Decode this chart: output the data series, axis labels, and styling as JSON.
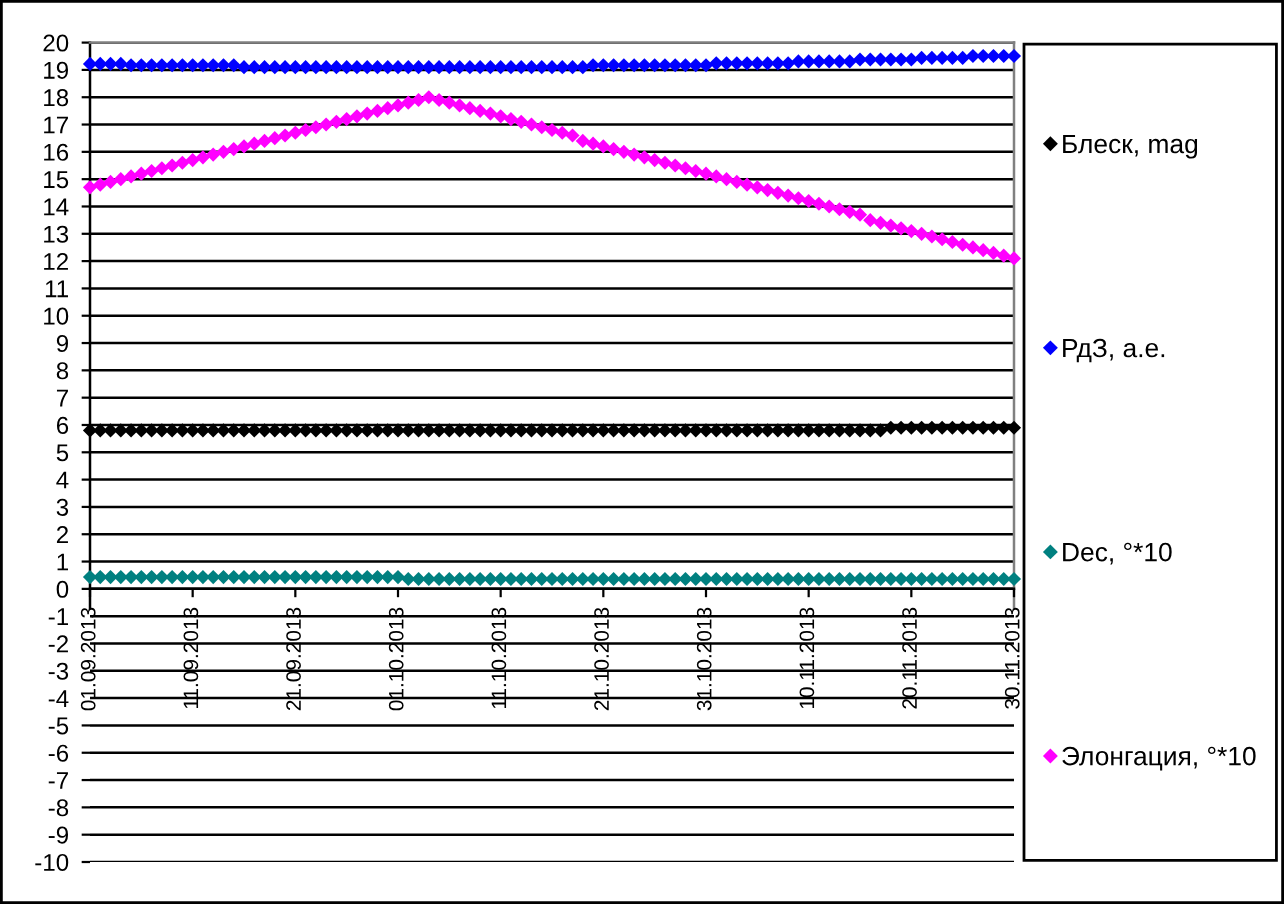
{
  "chart_data": {
    "type": "scatter",
    "x": [
      "2013-09-01",
      "2013-09-02",
      "2013-09-03",
      "2013-09-04",
      "2013-09-05",
      "2013-09-06",
      "2013-09-07",
      "2013-09-08",
      "2013-09-09",
      "2013-09-10",
      "2013-09-11",
      "2013-09-12",
      "2013-09-13",
      "2013-09-14",
      "2013-09-15",
      "2013-09-16",
      "2013-09-17",
      "2013-09-18",
      "2013-09-19",
      "2013-09-20",
      "2013-09-21",
      "2013-09-22",
      "2013-09-23",
      "2013-09-24",
      "2013-09-25",
      "2013-09-26",
      "2013-09-27",
      "2013-09-28",
      "2013-09-29",
      "2013-09-30",
      "2013-10-01",
      "2013-10-02",
      "2013-10-03",
      "2013-10-04",
      "2013-10-05",
      "2013-10-06",
      "2013-10-07",
      "2013-10-08",
      "2013-10-09",
      "2013-10-10",
      "2013-10-11",
      "2013-10-12",
      "2013-10-13",
      "2013-10-14",
      "2013-10-15",
      "2013-10-16",
      "2013-10-17",
      "2013-10-18",
      "2013-10-19",
      "2013-10-20",
      "2013-10-21",
      "2013-10-22",
      "2013-10-23",
      "2013-10-24",
      "2013-10-25",
      "2013-10-26",
      "2013-10-27",
      "2013-10-28",
      "2013-10-29",
      "2013-10-30",
      "2013-10-31",
      "2013-11-01",
      "2013-11-02",
      "2013-11-03",
      "2013-11-04",
      "2013-11-05",
      "2013-11-06",
      "2013-11-07",
      "2013-11-08",
      "2013-11-09",
      "2013-11-10",
      "2013-11-11",
      "2013-11-12",
      "2013-11-13",
      "2013-11-14",
      "2013-11-15",
      "2013-11-16",
      "2013-11-17",
      "2013-11-18",
      "2013-11-19",
      "2013-11-20",
      "2013-11-21",
      "2013-11-22",
      "2013-11-23",
      "2013-11-24",
      "2013-11-25",
      "2013-11-26",
      "2013-11-27",
      "2013-11-28",
      "2013-11-29",
      "2013-11-30"
    ],
    "xlim": [
      "2013-09-01",
      "2013-11-30"
    ],
    "xticks": [
      {
        "value": "2013-09-01",
        "label": "01.09.2013"
      },
      {
        "value": "2013-09-11",
        "label": "11.09.2013"
      },
      {
        "value": "2013-09-21",
        "label": "21.09.2013"
      },
      {
        "value": "2013-10-01",
        "label": "01.10.2013"
      },
      {
        "value": "2013-10-11",
        "label": "11.10.2013"
      },
      {
        "value": "2013-10-21",
        "label": "21.10.2013"
      },
      {
        "value": "2013-10-31",
        "label": "31.10.2013"
      },
      {
        "value": "2013-11-10",
        "label": "10.11.2013"
      },
      {
        "value": "2013-11-20",
        "label": "20.11.2013"
      },
      {
        "value": "2013-11-30",
        "label": "30.11.2013"
      }
    ],
    "ylim": [
      -10,
      20
    ],
    "yticks": [
      -10,
      -9,
      -8,
      -7,
      -6,
      -5,
      -4,
      -3,
      -2,
      -1,
      0,
      1,
      2,
      3,
      4,
      5,
      6,
      7,
      8,
      9,
      10,
      11,
      12,
      13,
      14,
      15,
      16,
      17,
      18,
      19,
      20
    ],
    "grid": "y",
    "legend": "right",
    "marker": "diamond",
    "series": [
      {
        "name": "Блеск, mag",
        "color": "#000000",
        "values": [
          5.8,
          5.8,
          5.8,
          5.8,
          5.8,
          5.8,
          5.8,
          5.8,
          5.8,
          5.8,
          5.8,
          5.8,
          5.8,
          5.8,
          5.8,
          5.8,
          5.8,
          5.8,
          5.8,
          5.8,
          5.8,
          5.8,
          5.8,
          5.8,
          5.8,
          5.8,
          5.8,
          5.8,
          5.8,
          5.8,
          5.8,
          5.8,
          5.8,
          5.8,
          5.8,
          5.8,
          5.8,
          5.8,
          5.8,
          5.8,
          5.8,
          5.8,
          5.8,
          5.8,
          5.8,
          5.8,
          5.8,
          5.8,
          5.8,
          5.8,
          5.8,
          5.8,
          5.8,
          5.8,
          5.8,
          5.8,
          5.8,
          5.8,
          5.8,
          5.8,
          5.8,
          5.8,
          5.8,
          5.8,
          5.8,
          5.8,
          5.8,
          5.8,
          5.8,
          5.8,
          5.8,
          5.8,
          5.8,
          5.8,
          5.8,
          5.8,
          5.8,
          5.8,
          5.9,
          5.9,
          5.9,
          5.9,
          5.9,
          5.9,
          5.9,
          5.9,
          5.9,
          5.9,
          5.9,
          5.9,
          5.9
        ]
      },
      {
        "name": "РдЗ, а.е.",
        "color": "#0000ff",
        "values": [
          19.22,
          19.22,
          19.22,
          19.22,
          19.17,
          19.17,
          19.17,
          19.17,
          19.17,
          19.17,
          19.17,
          19.17,
          19.17,
          19.17,
          19.17,
          19.1,
          19.1,
          19.1,
          19.1,
          19.1,
          19.1,
          19.1,
          19.1,
          19.1,
          19.1,
          19.1,
          19.1,
          19.1,
          19.1,
          19.1,
          19.1,
          19.1,
          19.1,
          19.1,
          19.1,
          19.1,
          19.1,
          19.1,
          19.1,
          19.1,
          19.1,
          19.1,
          19.1,
          19.1,
          19.1,
          19.1,
          19.1,
          19.1,
          19.1,
          19.17,
          19.17,
          19.17,
          19.17,
          19.17,
          19.17,
          19.17,
          19.17,
          19.17,
          19.17,
          19.17,
          19.17,
          19.24,
          19.24,
          19.24,
          19.24,
          19.24,
          19.24,
          19.24,
          19.24,
          19.31,
          19.31,
          19.31,
          19.31,
          19.31,
          19.31,
          19.38,
          19.38,
          19.38,
          19.38,
          19.38,
          19.38,
          19.44,
          19.44,
          19.44,
          19.44,
          19.44,
          19.51,
          19.51,
          19.51,
          19.51,
          19.51
        ]
      },
      {
        "name": "Dec, °*10",
        "color": "#008080",
        "values": [
          0.43,
          0.43,
          0.43,
          0.43,
          0.43,
          0.43,
          0.43,
          0.43,
          0.43,
          0.43,
          0.43,
          0.43,
          0.43,
          0.43,
          0.43,
          0.43,
          0.43,
          0.43,
          0.43,
          0.43,
          0.43,
          0.43,
          0.43,
          0.43,
          0.43,
          0.43,
          0.43,
          0.43,
          0.43,
          0.43,
          0.43,
          0.36,
          0.36,
          0.36,
          0.36,
          0.36,
          0.36,
          0.36,
          0.36,
          0.36,
          0.36,
          0.36,
          0.36,
          0.36,
          0.36,
          0.36,
          0.36,
          0.36,
          0.36,
          0.36,
          0.36,
          0.36,
          0.36,
          0.36,
          0.36,
          0.36,
          0.36,
          0.36,
          0.36,
          0.36,
          0.36,
          0.36,
          0.36,
          0.36,
          0.36,
          0.36,
          0.36,
          0.36,
          0.36,
          0.36,
          0.36,
          0.36,
          0.36,
          0.36,
          0.36,
          0.36,
          0.36,
          0.36,
          0.36,
          0.36,
          0.36,
          0.36,
          0.36,
          0.36,
          0.36,
          0.36,
          0.36,
          0.36,
          0.36,
          0.36,
          0.36
        ]
      },
      {
        "name": "Элонгация, °*10",
        "color": "#ff00ff",
        "values": [
          14.7,
          14.8,
          14.9,
          15.0,
          15.1,
          15.2,
          15.3,
          15.4,
          15.5,
          15.6,
          15.7,
          15.8,
          15.9,
          16.0,
          16.1,
          16.2,
          16.3,
          16.4,
          16.5,
          16.6,
          16.7,
          16.8,
          16.9,
          17.0,
          17.1,
          17.2,
          17.3,
          17.4,
          17.5,
          17.6,
          17.7,
          17.8,
          17.9,
          18.0,
          17.9,
          17.8,
          17.7,
          17.6,
          17.5,
          17.4,
          17.3,
          17.2,
          17.1,
          17.0,
          16.9,
          16.8,
          16.7,
          16.6,
          16.4,
          16.3,
          16.2,
          16.1,
          16.0,
          15.9,
          15.8,
          15.7,
          15.6,
          15.5,
          15.4,
          15.3,
          15.2,
          15.1,
          15.0,
          14.9,
          14.8,
          14.7,
          14.6,
          14.5,
          14.4,
          14.3,
          14.2,
          14.1,
          14.0,
          13.9,
          13.8,
          13.7,
          13.5,
          13.4,
          13.3,
          13.2,
          13.1,
          13.0,
          12.9,
          12.8,
          12.7,
          12.6,
          12.5,
          12.4,
          12.3,
          12.2,
          12.1
        ]
      }
    ]
  }
}
